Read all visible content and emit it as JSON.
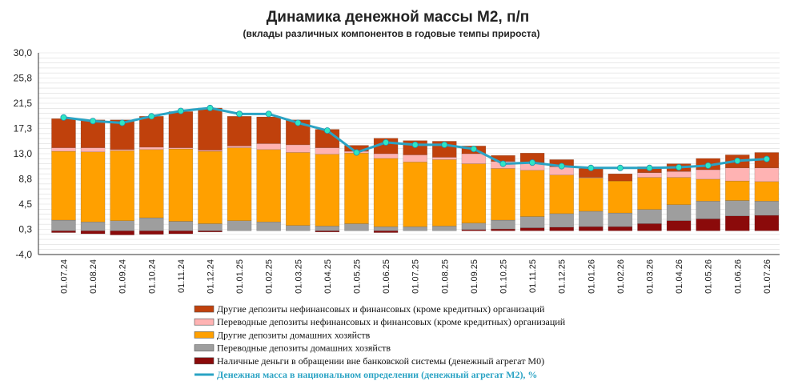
{
  "title": "Динамика денежной массы М2, п/п",
  "subtitle": "(вклады различных компонентов в годовые темпы прироста)",
  "chart_data": {
    "type": "bar",
    "stacked": true,
    "categories": [
      "01.07.24",
      "01.08.24",
      "01.09.24",
      "01.10.24",
      "01.11.24",
      "01.12.24",
      "01.01.25",
      "01.02.25",
      "01.03.25",
      "01.04.25",
      "01.05.25",
      "01.06.25",
      "01.07.25",
      "01.08.25",
      "01.09.25",
      "01.10.25",
      "01.11.25",
      "01.12.25",
      "01.01.26",
      "01.02.26",
      "01.03.26",
      "01.04.26",
      "01.05.26",
      "01.06.26",
      "01.07.26"
    ],
    "yticks": [
      "30,0",
      "25,8",
      "21,5",
      "17,3",
      "13,0",
      "8,8",
      "4,5",
      "0,3",
      "-4,0"
    ],
    "ylim": [
      -4.0,
      30.0
    ],
    "grid": true,
    "series": [
      {
        "name": "Наличные деньги в обращении вне банковской системы (денежный агрегат М0)",
        "color": "#8b0a0a",
        "values": [
          -0.3,
          -0.5,
          -0.7,
          -0.6,
          -0.5,
          -0.2,
          0.0,
          0.0,
          0.0,
          -0.2,
          0.0,
          -0.3,
          0.0,
          0.0,
          0.2,
          0.3,
          0.5,
          0.6,
          0.7,
          0.7,
          1.2,
          1.7,
          2.0,
          2.5,
          2.6
        ]
      },
      {
        "name": "Переводные депозиты домашних хозяйств",
        "color": "#9e9e9e",
        "values": [
          1.8,
          1.5,
          1.7,
          2.2,
          1.6,
          1.2,
          1.7,
          1.5,
          0.9,
          0.8,
          1.2,
          0.7,
          0.7,
          0.8,
          1.1,
          1.5,
          1.9,
          2.3,
          2.6,
          2.3,
          2.4,
          2.7,
          3.0,
          2.6,
          2.4
        ]
      },
      {
        "name": "Другие депозиты домашних хозяйств",
        "color": "#ffa000",
        "values": [
          11.6,
          11.8,
          11.8,
          11.5,
          12.2,
          12.2,
          12.3,
          12.2,
          12.3,
          12.1,
          11.9,
          11.5,
          10.9,
          11.2,
          10.0,
          8.7,
          7.8,
          6.5,
          5.6,
          5.4,
          5.4,
          4.6,
          3.7,
          3.3,
          3.3
        ]
      },
      {
        "name": "Переводные депозиты нефинансовых и финансовых (кроме кредитных)  организаций",
        "color": "#ffb3b3",
        "values": [
          0.6,
          0.7,
          0.2,
          0.4,
          0.2,
          0.2,
          0.3,
          1.0,
          1.3,
          1.1,
          0.3,
          0.8,
          1.2,
          0.4,
          1.7,
          1.2,
          1.3,
          1.4,
          0.1,
          0.0,
          0.8,
          1.0,
          1.6,
          2.2,
          2.3
        ]
      },
      {
        "name": "Другие депозиты нефинансовых и финансовых (кроме кредитных)  организаций",
        "color": "#c0410c",
        "values": [
          4.9,
          4.7,
          5.0,
          5.2,
          6.1,
          7.1,
          5.0,
          4.5,
          4.2,
          3.1,
          1.0,
          2.6,
          2.4,
          2.7,
          1.3,
          1.0,
          1.6,
          1.2,
          1.5,
          1.2,
          1.0,
          1.3,
          1.9,
          2.2,
          2.6
        ]
      }
    ],
    "line": {
      "name": "Денежная масса в национальном  определении  (денежный агрегат  М2), %",
      "color": "#2aa3c4",
      "marker_color": "#2ee6c4",
      "values": [
        19.1,
        18.5,
        18.2,
        19.3,
        20.2,
        20.7,
        19.7,
        19.7,
        18.2,
        16.9,
        13.2,
        14.9,
        14.5,
        14.5,
        13.8,
        11.3,
        11.5,
        10.9,
        10.6,
        10.6,
        10.6,
        10.7,
        11.0,
        11.8,
        12.1
      ]
    },
    "legend": {
      "position": "bottom-center"
    }
  }
}
